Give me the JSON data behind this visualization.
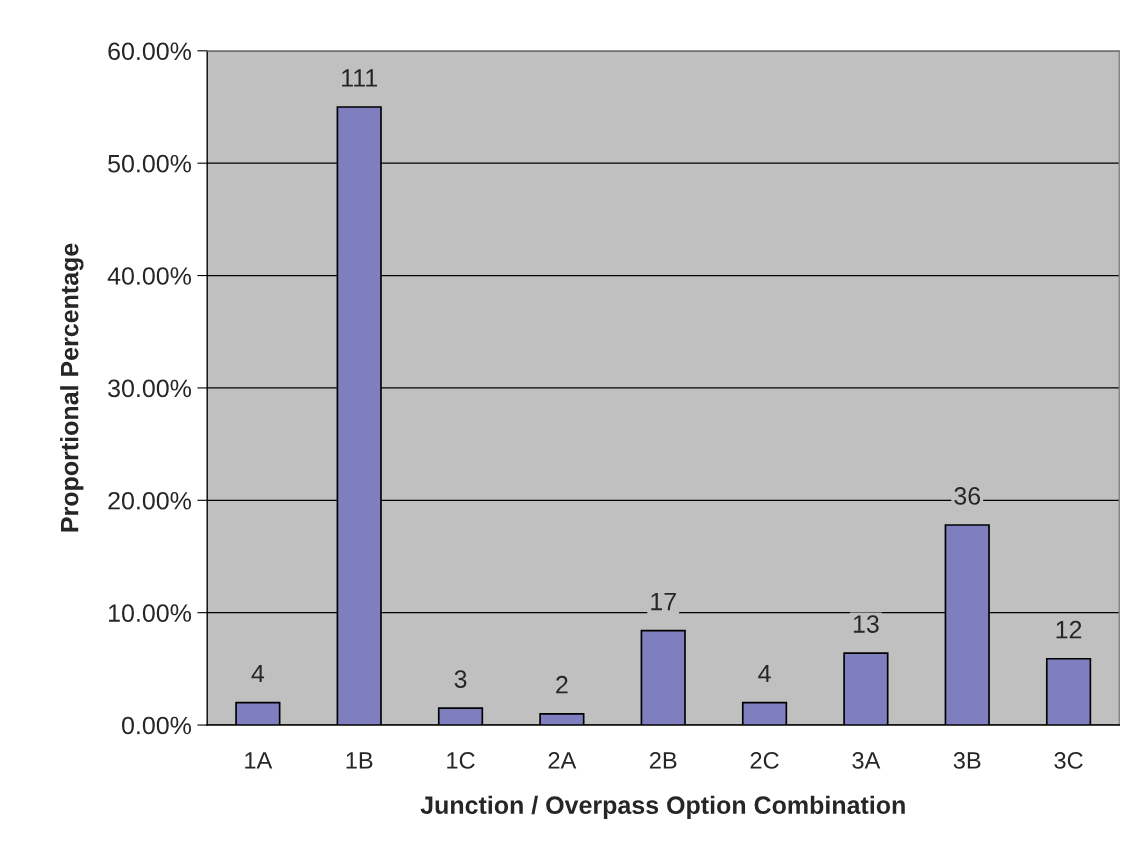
{
  "chart_data": {
    "type": "bar",
    "xlabel": "Junction / Overpass Option Combination",
    "ylabel": "Proportional Percentage",
    "categories": [
      "1A",
      "1B",
      "1C",
      "2A",
      "2B",
      "2C",
      "3A",
      "3B",
      "3C"
    ],
    "values": [
      2.0,
      55.0,
      1.5,
      1.0,
      8.4,
      2.0,
      6.4,
      17.8,
      5.9
    ],
    "annotations": [
      {
        "text": "4",
        "x": "1A",
        "y": 2.0
      },
      {
        "text": "111",
        "x": "1B",
        "y": 55.0
      },
      {
        "text": "3",
        "x": "1C",
        "y": 1.5
      },
      {
        "text": "2",
        "x": "2A",
        "y": 1.0
      },
      {
        "text": "17",
        "x": "2B",
        "y": 8.4
      },
      {
        "text": "4",
        "x": "2C",
        "y": 2.0
      },
      {
        "text": "13",
        "x": "3A",
        "y": 6.4
      },
      {
        "text": "36",
        "x": "3B",
        "y": 17.8
      },
      {
        "text": "12",
        "x": "3C",
        "y": 5.9
      }
    ],
    "color": "#7f7fc0",
    "ylim": [
      0,
      60
    ],
    "yticks": [
      {
        "value": 0,
        "label": "0.00%"
      },
      {
        "value": 10,
        "label": "10.00%"
      },
      {
        "value": 20,
        "label": "20.00%"
      },
      {
        "value": 30,
        "label": "30.00%"
      },
      {
        "value": 40,
        "label": "40.00%"
      },
      {
        "value": 50,
        "label": "50.00%"
      },
      {
        "value": 60,
        "label": "60.00%"
      }
    ],
    "grid": "y"
  }
}
